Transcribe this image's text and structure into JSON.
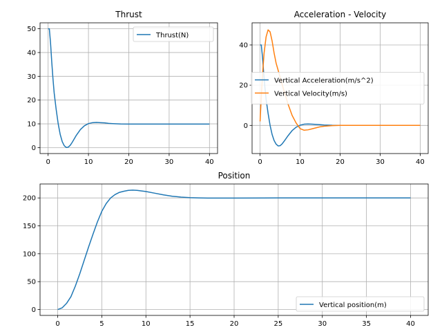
{
  "colors": {
    "blue": "#1f77b4",
    "orange": "#ff7f0e",
    "grid": "#b0b0b0"
  },
  "chart_data": [
    {
      "type": "line",
      "title": "Thrust",
      "xlim": [
        -2,
        42
      ],
      "ylim": [
        -2.5,
        52.5
      ],
      "xticks": [
        0,
        10,
        20,
        30,
        40
      ],
      "yticks": [
        0,
        10,
        20,
        30,
        40,
        50
      ],
      "grid": true,
      "legend_loc": "upper right",
      "series": [
        {
          "name": "Thrust(N)",
          "color": "#1f77b4",
          "x": [
            0,
            0.3,
            0.6,
            0.9,
            1.2,
            1.5,
            2,
            2.5,
            3,
            3.5,
            4,
            4.5,
            5,
            5.5,
            6,
            7,
            8,
            9,
            10,
            11,
            12,
            13,
            14,
            15,
            16,
            18,
            20,
            25,
            30,
            35,
            40
          ],
          "y": [
            50,
            50,
            44,
            36,
            29,
            23,
            16,
            10,
            5.5,
            2.5,
            0.8,
            0.05,
            0.2,
            1.0,
            2.3,
            5.2,
            7.6,
            9.2,
            10.1,
            10.5,
            10.6,
            10.5,
            10.4,
            10.2,
            10.1,
            9.95,
            9.9,
            9.9,
            9.9,
            9.9,
            9.9
          ]
        }
      ]
    },
    {
      "type": "line",
      "title": "Acceleration - Velocity",
      "xlim": [
        -2,
        42
      ],
      "ylim": [
        -14,
        51
      ],
      "xticks": [
        0,
        10,
        20,
        30,
        40
      ],
      "yticks": [
        0,
        20,
        40
      ],
      "grid": true,
      "legend_loc": "center right",
      "series": [
        {
          "name": "Vertical Acceleration(m/s^2)",
          "color": "#1f77b4",
          "x": [
            0,
            0.3,
            0.6,
            0.9,
            1.2,
            1.5,
            2,
            2.5,
            3,
            3.5,
            4,
            4.5,
            5,
            5.5,
            6,
            7,
            8,
            9,
            10,
            11,
            12,
            13,
            14,
            15,
            16,
            18,
            20,
            25,
            30,
            35,
            40
          ],
          "y": [
            40,
            40,
            34,
            26,
            19,
            13,
            6,
            0,
            -4.5,
            -7.5,
            -9.3,
            -10.2,
            -10.1,
            -9.2,
            -7.9,
            -5.1,
            -2.6,
            -0.9,
            0.1,
            0.6,
            0.7,
            0.6,
            0.5,
            0.35,
            0.2,
            0.05,
            0,
            0,
            0,
            0,
            0
          ]
        },
        {
          "name": "Vertical Velocity(m/s)",
          "color": "#ff7f0e",
          "x": [
            0,
            0.3,
            0.6,
            1,
            1.5,
            2,
            2.5,
            3,
            3.5,
            4,
            5,
            6,
            7,
            8,
            9,
            10,
            11,
            12,
            13,
            14,
            15,
            16,
            18,
            20,
            25,
            30,
            35,
            40
          ],
          "y": [
            2,
            14,
            25,
            36,
            44,
            47.5,
            46.5,
            42,
            36,
            31,
            24,
            17,
            10.5,
            5,
            1.2,
            -1.6,
            -2.4,
            -2.2,
            -1.7,
            -1.2,
            -0.7,
            -0.4,
            -0.1,
            0,
            0,
            0,
            0,
            0
          ]
        }
      ]
    },
    {
      "type": "line",
      "title": "Position",
      "xlim": [
        -2,
        42
      ],
      "ylim": [
        -10.5,
        225
      ],
      "xticks": [
        0,
        5,
        10,
        15,
        20,
        25,
        30,
        35,
        40
      ],
      "yticks": [
        0,
        50,
        100,
        150,
        200
      ],
      "grid": true,
      "legend_loc": "lower right",
      "series": [
        {
          "name": "Vertical position(m)",
          "color": "#1f77b4",
          "x": [
            0,
            0.5,
            1,
            1.5,
            2,
            2.5,
            3,
            3.5,
            4,
            4.5,
            5,
            5.5,
            6,
            6.5,
            7,
            7.5,
            8,
            8.5,
            9,
            10,
            11,
            12,
            13,
            14,
            15,
            16,
            17,
            18,
            20,
            25,
            30,
            35,
            40
          ],
          "y": [
            0,
            3,
            11,
            23,
            42,
            64,
            88,
            112,
            135,
            157,
            176,
            190,
            200,
            206,
            210,
            212,
            213.5,
            214,
            213.5,
            211.5,
            208.5,
            205.5,
            203,
            201.5,
            200.5,
            200,
            199.8,
            199.8,
            199.8,
            200,
            200,
            200,
            200
          ]
        }
      ]
    }
  ]
}
